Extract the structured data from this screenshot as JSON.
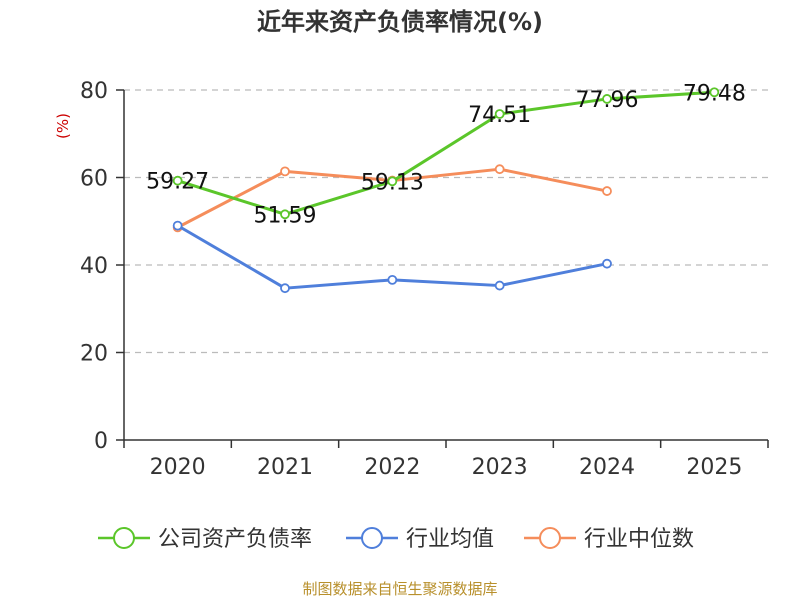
{
  "chart_data": {
    "type": "line",
    "title": "近年来资产负债率情况(%)",
    "ylabel": "(%)",
    "xlabel": "",
    "categories": [
      "2020",
      "2021",
      "2022",
      "2023",
      "2024",
      "2025"
    ],
    "ylim": [
      0,
      80
    ],
    "yticks": [
      0,
      20,
      40,
      60,
      80
    ],
    "grid": true,
    "legend_position": "bottom",
    "series": [
      {
        "name": "公司资产负债率",
        "color": "#5bc62a",
        "values": [
          59.27,
          51.59,
          59.13,
          74.51,
          77.96,
          79.48
        ],
        "labels": [
          "59.27",
          "51.59",
          "59.13",
          "74.51",
          "77.96",
          "79.48"
        ]
      },
      {
        "name": "行业均值",
        "color": "#4f7fdb",
        "values": [
          49.0,
          34.7,
          36.6,
          35.3,
          40.3,
          null
        ]
      },
      {
        "name": "行业中位数",
        "color": "#f58d5b",
        "values": [
          48.6,
          61.4,
          59.3,
          61.9,
          56.9,
          null
        ]
      }
    ]
  },
  "source_note": "制图数据来自恒生聚源数据库",
  "colors": {
    "axis": "#333333",
    "grid": "#bbbbbb",
    "ylabel": "#cc0000",
    "source": "#b8902c",
    "title": "#333333"
  }
}
